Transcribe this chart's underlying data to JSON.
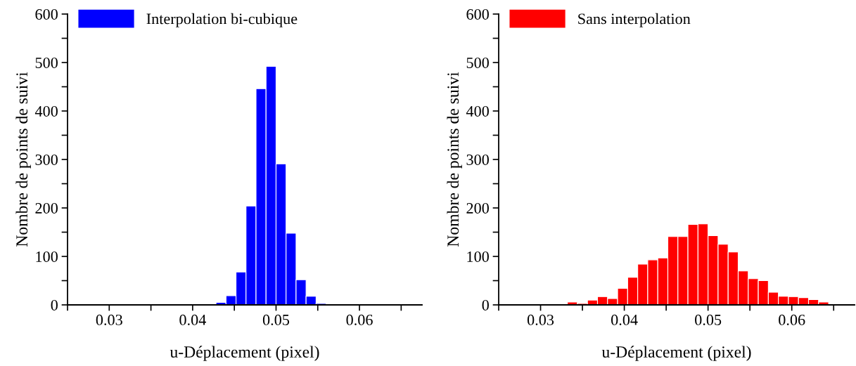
{
  "chart_data": [
    {
      "type": "histogram",
      "xlabel": "u-Déplacement (pixel)",
      "ylabel": "Nombre de points de suivi",
      "legend": "top left",
      "bins": [
        0.0428,
        0.044,
        0.0452,
        0.0464,
        0.0476,
        0.0488,
        0.05,
        0.0512,
        0.0524,
        0.0536,
        0.0548,
        0.056
      ],
      "series": [
        {
          "name": "Interpolation bi-cubique",
          "color": "#0000ff",
          "values": [
            5,
            19,
            68,
            204,
            446,
            492,
            291,
            148,
            52,
            18,
            3
          ]
        }
      ],
      "xlim": [
        0.025,
        0.0675
      ],
      "ylim": [
        0,
        600
      ],
      "xticks": [
        {
          "value": 0.025,
          "label": null
        },
        0.03,
        {
          "value": 0.035,
          "label": null
        },
        0.04,
        {
          "value": 0.045,
          "label": null
        },
        0.05,
        {
          "value": 0.055,
          "label": null
        },
        0.06,
        {
          "value": 0.065,
          "label": null
        }
      ],
      "yticks": [
        0,
        {
          "value": 50,
          "label": null
        },
        100,
        {
          "value": 150,
          "label": null
        },
        200,
        {
          "value": 250,
          "label": null
        },
        300,
        {
          "value": 350,
          "label": null
        },
        400,
        {
          "value": 450,
          "label": null
        },
        500,
        {
          "value": 550,
          "label": null
        },
        600
      ]
    },
    {
      "type": "histogram",
      "xlabel": "u-Déplacement (pixel)",
      "ylabel": "Nombre de points de suivi",
      "legend": "top left",
      "bins": [
        0.0308,
        0.032,
        0.0332,
        0.0344,
        0.0356,
        0.0368,
        0.038,
        0.0392,
        0.0404,
        0.0416,
        0.0428,
        0.044,
        0.0452,
        0.0464,
        0.0476,
        0.0488,
        0.05,
        0.0512,
        0.0524,
        0.0536,
        0.0548,
        0.056,
        0.0572,
        0.0584,
        0.0596,
        0.0608,
        0.062,
        0.0632,
        0.0644
      ],
      "series": [
        {
          "name": "Sans interpolation",
          "color": "#ff0000",
          "values": [
            2,
            0,
            6,
            3,
            10,
            17,
            13,
            34,
            57,
            84,
            93,
            97,
            141,
            141,
            166,
            167,
            143,
            125,
            109,
            70,
            54,
            50,
            26,
            18,
            17,
            15,
            11,
            6
          ]
        }
      ],
      "xlim": [
        0.025,
        0.0675
      ],
      "ylim": [
        0,
        600
      ],
      "xticks": [
        {
          "value": 0.025,
          "label": null
        },
        0.03,
        {
          "value": 0.035,
          "label": null
        },
        0.04,
        {
          "value": 0.045,
          "label": null
        },
        0.05,
        {
          "value": 0.055,
          "label": null
        },
        0.06,
        {
          "value": 0.065,
          "label": null
        }
      ],
      "yticks": [
        0,
        {
          "value": 50,
          "label": null
        },
        100,
        {
          "value": 150,
          "label": null
        },
        200,
        {
          "value": 250,
          "label": null
        },
        300,
        {
          "value": 350,
          "label": null
        },
        400,
        {
          "value": 450,
          "label": null
        },
        500,
        {
          "value": 550,
          "label": null
        },
        600
      ]
    }
  ]
}
